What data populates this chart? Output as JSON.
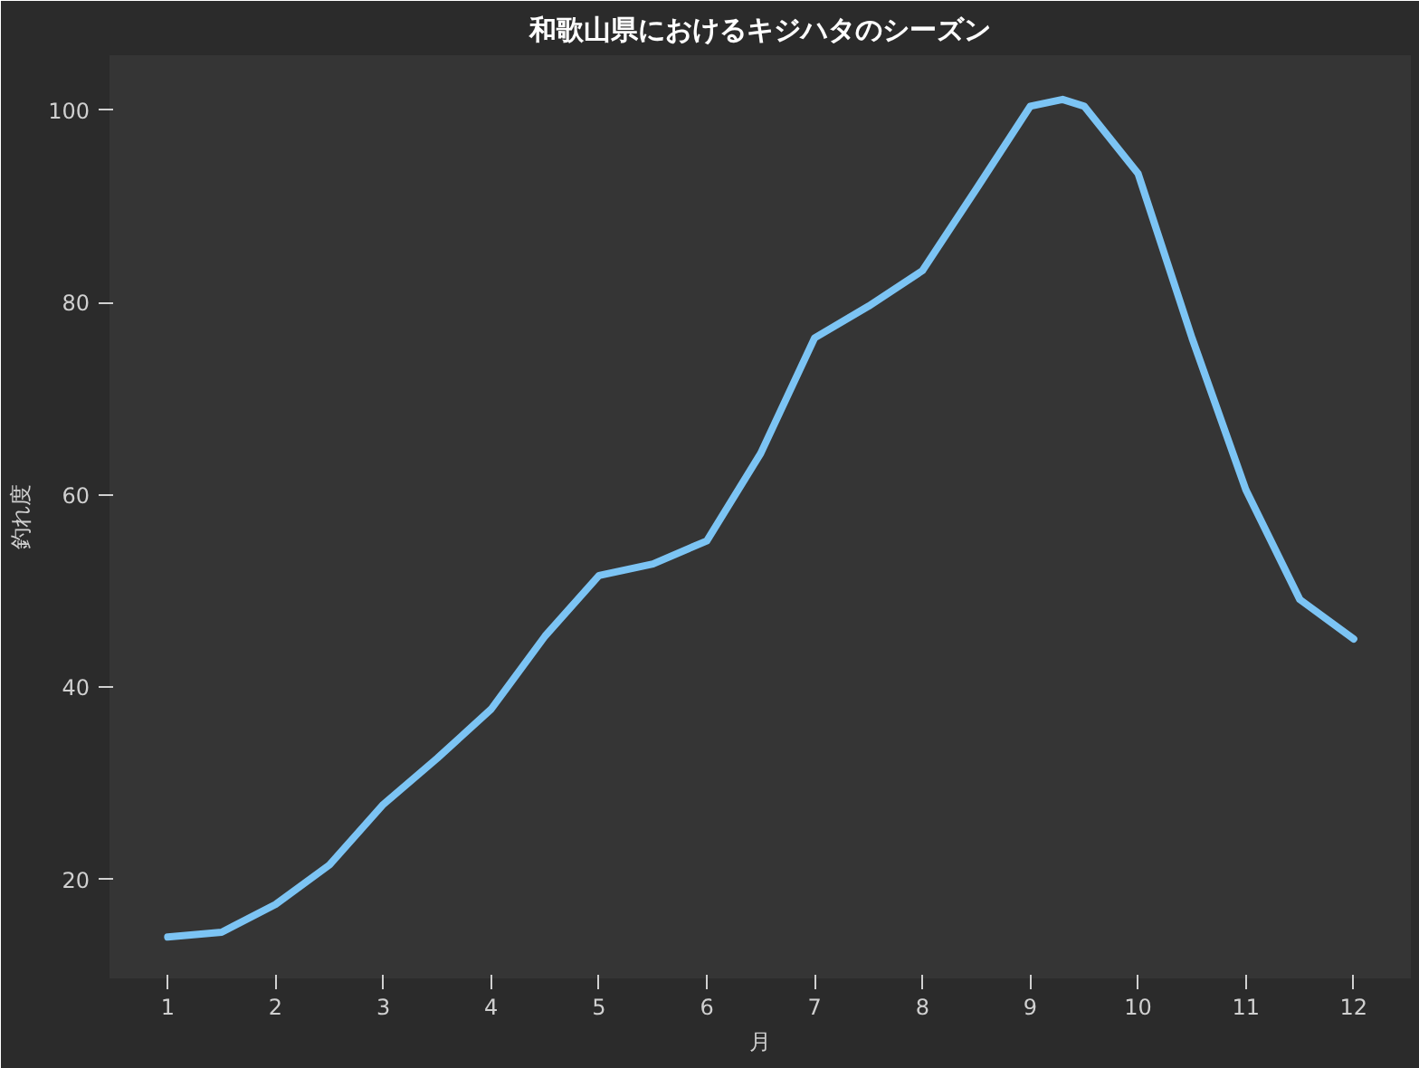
{
  "chart_data": {
    "type": "line",
    "title": "和歌山県におけるキジハタのシーズン",
    "xlabel": "月",
    "ylabel": "釣れ度",
    "x": [
      1,
      1.5,
      2,
      2.5,
      3,
      3.5,
      4,
      4.5,
      5,
      5.5,
      6,
      6.5,
      7,
      7.5,
      8,
      8.5,
      9,
      9.3,
      9.5,
      10,
      10.5,
      11,
      11.5,
      12
    ],
    "series": [
      {
        "color": "#7cc4f4",
        "values": [
          14,
          14.5,
          17.4,
          21.5,
          27.8,
          32.6,
          37.7,
          45.3,
          51.6,
          52.8,
          55.2,
          64.3,
          76.3,
          79.6,
          83.3,
          91.8,
          100.4,
          101.1,
          100.4,
          93.4,
          76.3,
          60.5,
          49.1,
          45
        ]
      }
    ],
    "xlim": [
      0.46,
      12.53
    ],
    "ylim": [
      9.7,
      105.7
    ],
    "xticks": [
      1,
      2,
      3,
      4,
      5,
      6,
      7,
      8,
      9,
      10,
      11,
      12
    ],
    "yticks": [
      20,
      40,
      60,
      80,
      100
    ],
    "grid": false,
    "marker": "none",
    "line_style": "solid"
  }
}
